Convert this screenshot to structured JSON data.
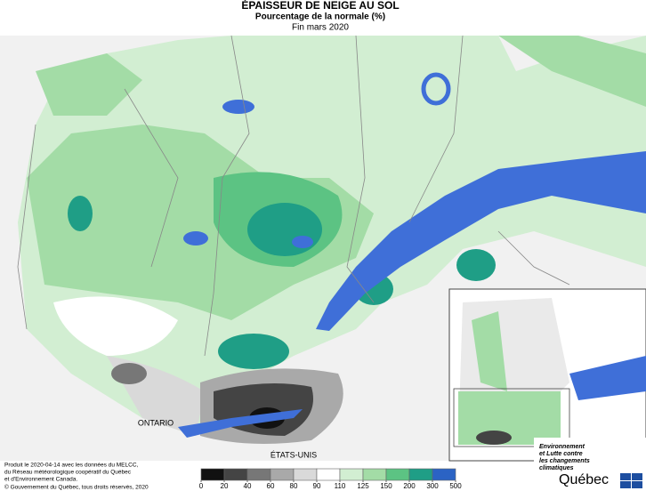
{
  "header": {
    "title": "ÉPAISSEUR DE NEIGE AU SOL",
    "subtitle": "Pourcentage de la normale (%)",
    "date": "Fin mars 2020"
  },
  "map_labels": {
    "ontario": "ONTARIO",
    "usa": "ÉTATS-UNIS"
  },
  "legend": {
    "bins": [
      0,
      20,
      40,
      60,
      80,
      90,
      110,
      125,
      150,
      200,
      300,
      500
    ],
    "colors": [
      "#111111",
      "#444444",
      "#777777",
      "#a9a9a9",
      "#d9d9d9",
      "#ffffff",
      "#d2eed2",
      "#a3dca6",
      "#5cc383",
      "#1f9e86",
      "#2b63c4"
    ]
  },
  "credits": [
    "Produit le 2020-04-14 avec les données du MELCC,",
    "du Réseau météorologique coopératif du Québec",
    "et d'Environnement Canada.",
    "© Gouvernement du Québec, tous droits réservés, 2020"
  ],
  "logo": {
    "ministry": [
      "Environnement",
      "et Lutte contre",
      "les changements",
      "climatiques"
    ],
    "name": "Québec"
  }
}
